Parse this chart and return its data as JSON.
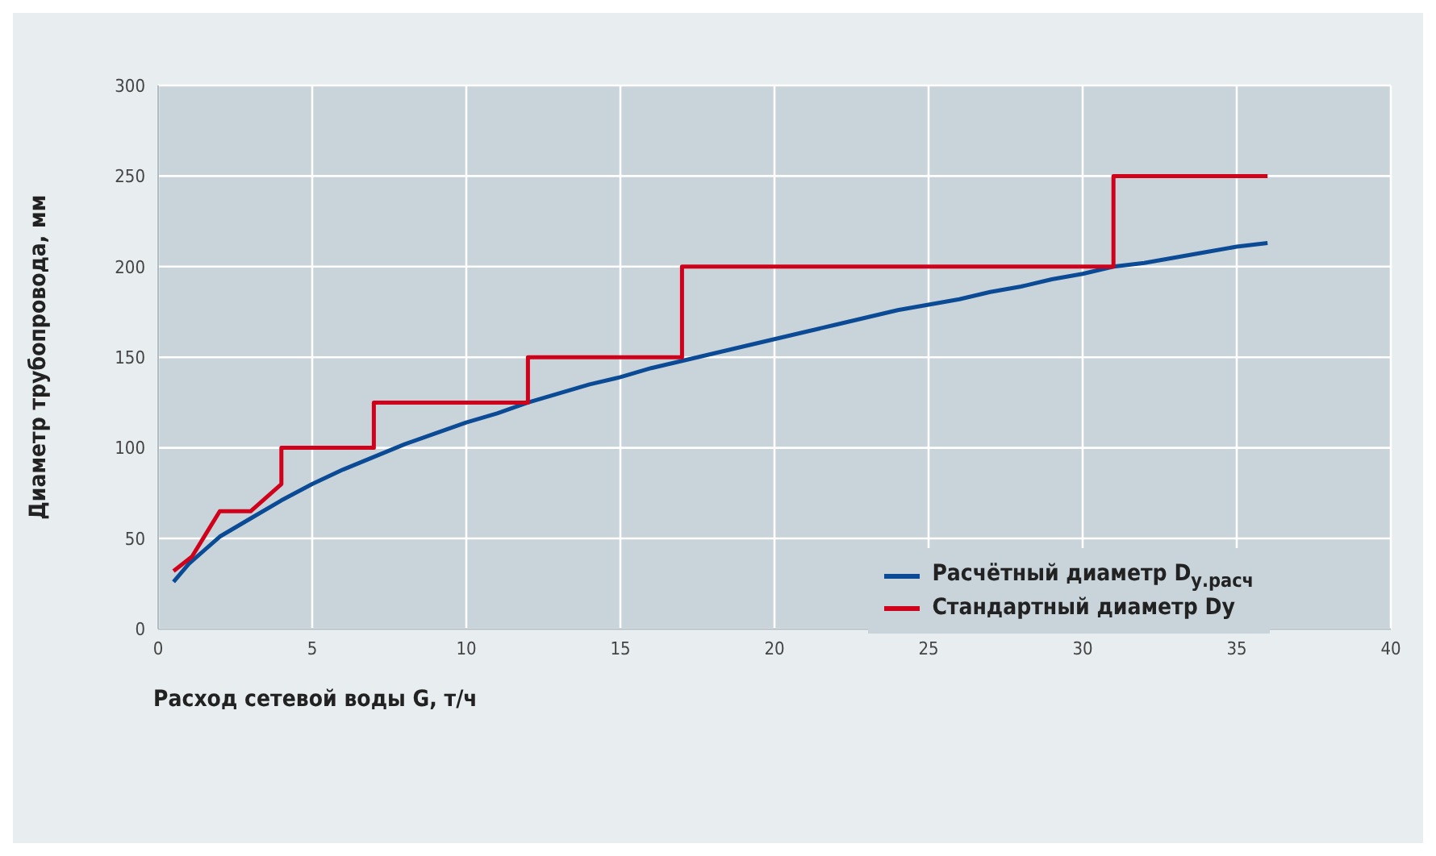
{
  "chart_data": {
    "type": "line",
    "xlabel": "Расход сетевой воды G, т/ч",
    "ylabel": "Диаметр трубопровода, мм",
    "xlim": [
      0,
      40
    ],
    "xticks": [
      0,
      5,
      10,
      15,
      20,
      25,
      30,
      35,
      40
    ],
    "ylim": [
      0,
      300
    ],
    "yticks": [
      0,
      50,
      100,
      150,
      200,
      250,
      300
    ],
    "grid": true,
    "legend": "bottom right",
    "series": [
      {
        "name": "Расчётный диаметр D$_{у.расч}$",
        "color": "#0b4a94",
        "x": [
          0.5,
          1,
          2,
          3,
          4,
          5,
          6,
          7,
          8,
          9,
          10,
          11,
          12,
          13,
          14,
          15,
          16,
          17,
          18,
          19,
          20,
          21,
          22,
          23,
          24,
          25,
          26,
          27,
          28,
          29,
          30,
          31,
          32,
          33,
          34,
          35,
          36
        ],
        "values": [
          26,
          36,
          51,
          61,
          71,
          80,
          88,
          95,
          102,
          108,
          114,
          119,
          125,
          130,
          135,
          139,
          144,
          148,
          152,
          156,
          160,
          164,
          168,
          172,
          176,
          179,
          182,
          186,
          189,
          193,
          196,
          200,
          202,
          205,
          208,
          211,
          213
        ]
      },
      {
        "name": "Стандартный диаметр Dy",
        "color": "#d0021b",
        "x": [
          0.5,
          1.1,
          2,
          3,
          4,
          4,
          7,
          7,
          12,
          12,
          17,
          17,
          31,
          31,
          36
        ],
        "values": [
          32,
          40,
          65,
          65,
          80,
          100,
          100,
          125,
          125,
          150,
          150,
          200,
          200,
          250,
          250
        ]
      }
    ]
  }
}
